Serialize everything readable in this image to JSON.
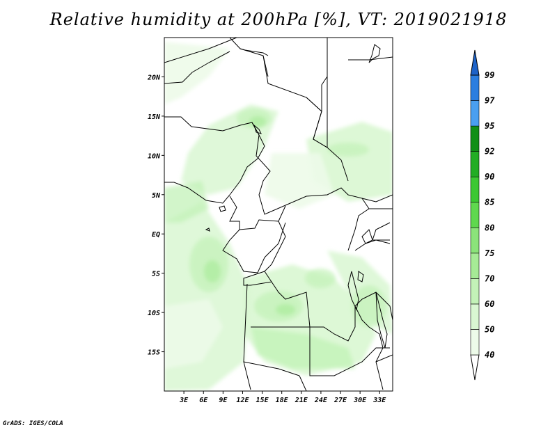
{
  "title": "Relative humidity at 200hPa [%], VT: 2019021918",
  "credit": "GrADS: IGES/COLA",
  "map": {
    "lon_range": [
      0,
      35
    ],
    "lat_range": [
      -20,
      25
    ],
    "lat_ticks": [
      {
        "value": 20,
        "label": "20N"
      },
      {
        "value": 15,
        "label": "15N"
      },
      {
        "value": 10,
        "label": "10N"
      },
      {
        "value": 5,
        "label": "5N"
      },
      {
        "value": 0,
        "label": "EQ"
      },
      {
        "value": -5,
        "label": "5S"
      },
      {
        "value": -10,
        "label": "10S"
      },
      {
        "value": -15,
        "label": "15S"
      }
    ],
    "lon_ticks": [
      {
        "value": 3,
        "label": "3E"
      },
      {
        "value": 6,
        "label": "6E"
      },
      {
        "value": 9,
        "label": "9E"
      },
      {
        "value": 12,
        "label": "12E"
      },
      {
        "value": 15,
        "label": "15E"
      },
      {
        "value": 18,
        "label": "18E"
      },
      {
        "value": 21,
        "label": "21E"
      },
      {
        "value": 24,
        "label": "24E"
      },
      {
        "value": 27,
        "label": "27E"
      },
      {
        "value": 30,
        "label": "30E"
      },
      {
        "value": 33,
        "label": "33E"
      }
    ]
  },
  "colorbar": {
    "levels": [
      {
        "label": "40",
        "color": "#edfbe9"
      },
      {
        "label": "50",
        "color": "#d9f7d2"
      },
      {
        "label": "60",
        "color": "#c3f2b8"
      },
      {
        "label": "70",
        "color": "#a6eb96"
      },
      {
        "label": "75",
        "color": "#8be37a"
      },
      {
        "label": "80",
        "color": "#5fd84e"
      },
      {
        "label": "85",
        "color": "#3cc833"
      },
      {
        "label": "90",
        "color": "#22ad24"
      },
      {
        "label": "92",
        "color": "#118f17"
      },
      {
        "label": "95",
        "color": "#4a9ff0"
      },
      {
        "label": "97",
        "color": "#2b7ee0"
      },
      {
        "label": "99",
        "color": "#1e63c8"
      }
    ],
    "under_color": "#ffffff",
    "over_color": "#1e63c8"
  }
}
